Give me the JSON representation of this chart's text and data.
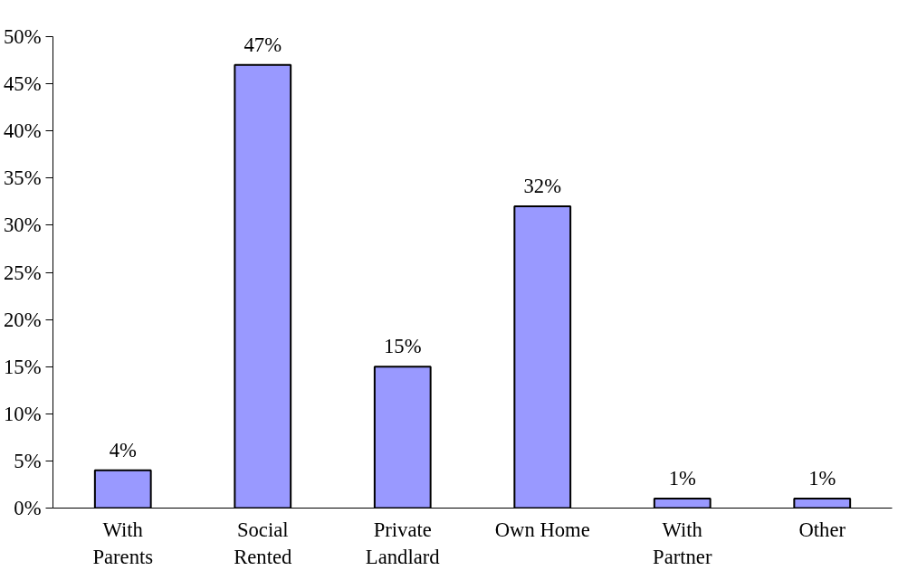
{
  "chart_data": {
    "type": "bar",
    "categories": [
      "With\nParents",
      "Social\nRented",
      "Private\nLandlard",
      "Own Home",
      "With\nPartner",
      "Other"
    ],
    "values": [
      4,
      47,
      15,
      32,
      1,
      1
    ],
    "value_labels": [
      "4%",
      "47%",
      "15%",
      "32%",
      "1%",
      "1%"
    ],
    "color": "#9999ff",
    "ylim": [
      0,
      50
    ],
    "yticks": [
      {
        "value": 0,
        "label": "0%"
      },
      {
        "value": 5,
        "label": "5%"
      },
      {
        "value": 10,
        "label": "10%"
      },
      {
        "value": 15,
        "label": "15%"
      },
      {
        "value": 20,
        "label": "20%"
      },
      {
        "value": 25,
        "label": "25%"
      },
      {
        "value": 30,
        "label": "30%"
      },
      {
        "value": 35,
        "label": "35%"
      },
      {
        "value": 40,
        "label": "40%"
      },
      {
        "value": 45,
        "label": "45%"
      },
      {
        "value": 50,
        "label": "50%"
      }
    ],
    "grid": false
  }
}
